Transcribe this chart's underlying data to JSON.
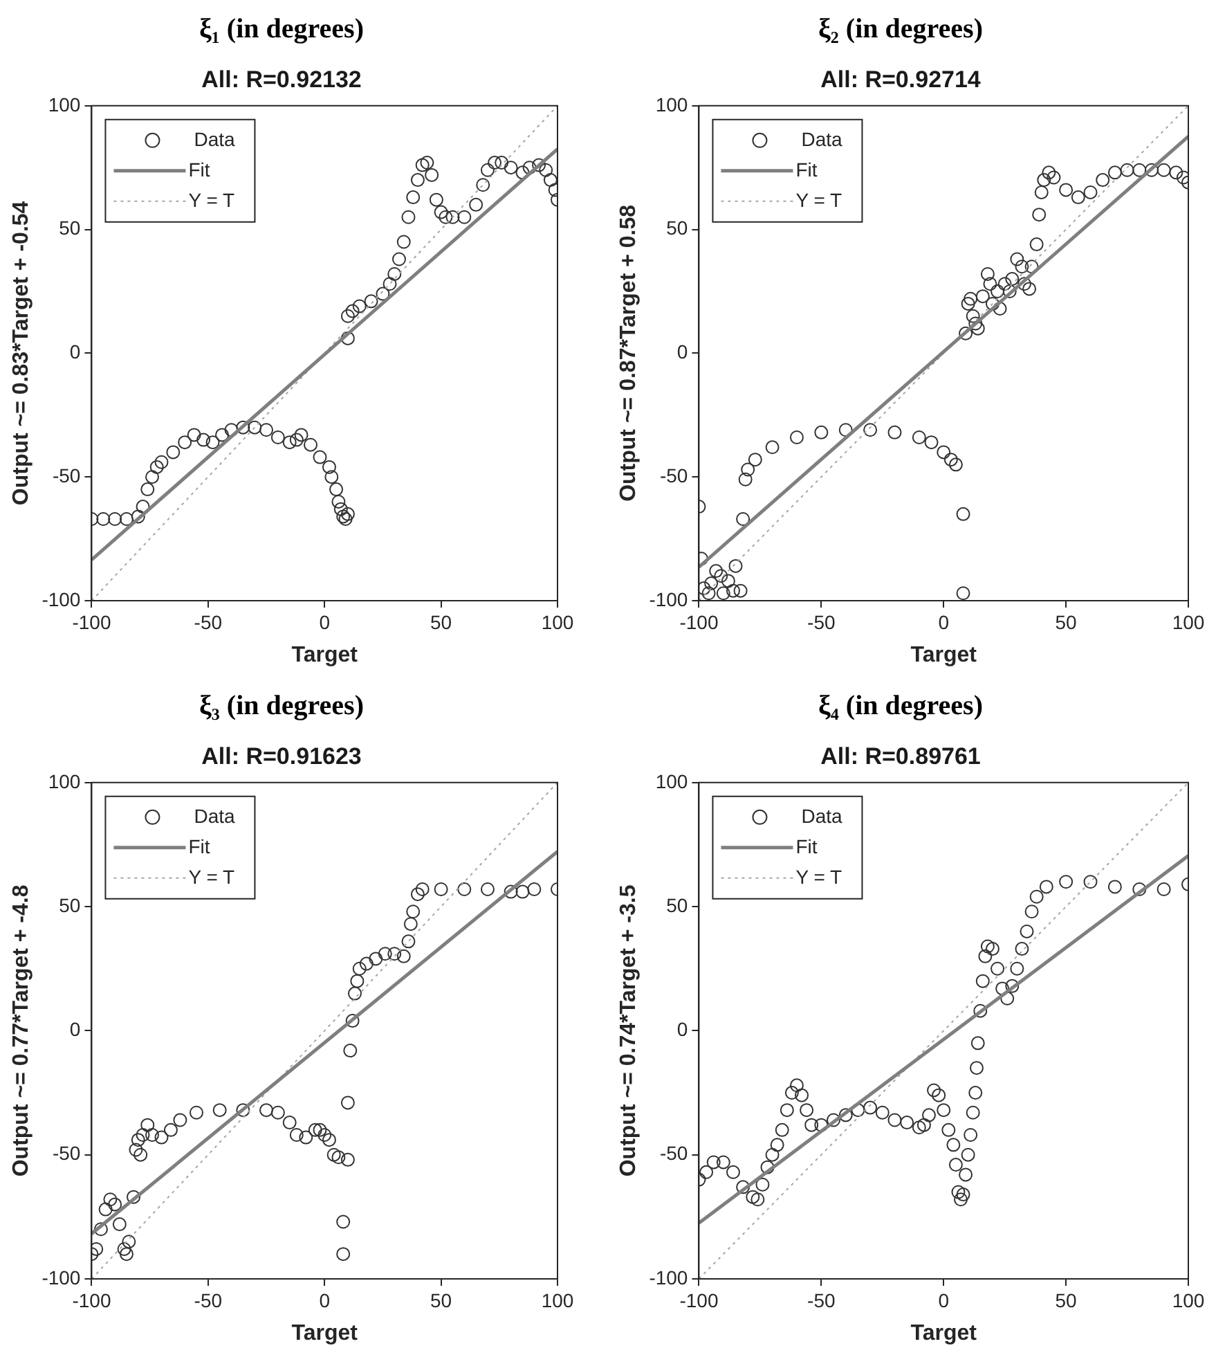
{
  "chart_data": [
    {
      "type": "scatter",
      "title": "ξ₁ (in degrees)",
      "subtitle": "All: R=0.92132",
      "xlabel": "Target",
      "ylabel": "Output ~= 0.83*Target + -0.54",
      "xlim": [
        -100,
        100
      ],
      "ylim": [
        -100,
        100
      ],
      "xticks": [
        -100,
        -50,
        0,
        50,
        100
      ],
      "yticks": [
        -100,
        -50,
        0,
        50,
        100
      ],
      "legend": "top left",
      "grid": false,
      "series": [
        {
          "name": "Data",
          "type": "scatter",
          "marker": "circle",
          "color": "#333333",
          "x": [
            -100,
            -95,
            -90,
            -85,
            -80,
            -78,
            -76,
            -74,
            -72,
            -70,
            -65,
            -60,
            -56,
            -52,
            -48,
            -44,
            -40,
            -35,
            -30,
            -25,
            -20,
            -15,
            -12,
            -10,
            -6,
            -2,
            2,
            3,
            5,
            6,
            7,
            8,
            9,
            10,
            10,
            10,
            12,
            15,
            20,
            25,
            28,
            30,
            32,
            34,
            36,
            38,
            40,
            42,
            44,
            46,
            48,
            50,
            52,
            55,
            60,
            65,
            68,
            70,
            73,
            76,
            80,
            85,
            88,
            92,
            95,
            97,
            99,
            100
          ],
          "values": [
            -67,
            -67,
            -67,
            -67,
            -66,
            -62,
            -55,
            -50,
            -46,
            -44,
            -40,
            -36,
            -33,
            -35,
            -36,
            -33,
            -31,
            -30,
            -30,
            -31,
            -34,
            -36,
            -35,
            -33,
            -37,
            -42,
            -46,
            -50,
            -55,
            -60,
            -63,
            -66,
            -67,
            -65,
            6,
            15,
            17,
            19,
            21,
            24,
            28,
            32,
            38,
            45,
            55,
            63,
            70,
            76,
            77,
            72,
            62,
            57,
            55,
            55,
            55,
            60,
            68,
            74,
            77,
            77,
            75,
            73,
            75,
            76,
            74,
            70,
            66,
            62
          ]
        },
        {
          "name": "Fit",
          "type": "line",
          "marker": "none",
          "line_style": "solid",
          "color": "#7f7f7f",
          "x": [
            -100,
            100
          ],
          "values": [
            -83.5,
            82.5
          ]
        },
        {
          "name": "Y = T",
          "type": "line",
          "marker": "none",
          "line_style": "dotted",
          "color": "#a6a6a6",
          "x": [
            -100,
            100
          ],
          "values": [
            -100,
            100
          ]
        }
      ]
    },
    {
      "type": "scatter",
      "title": "ξ₂ (in degrees)",
      "subtitle": "All: R=0.92714",
      "xlabel": "Target",
      "ylabel": "Output ~= 0.87*Target + 0.58",
      "xlim": [
        -100,
        100
      ],
      "ylim": [
        -100,
        100
      ],
      "xticks": [
        -100,
        -50,
        0,
        50,
        100
      ],
      "yticks": [
        -100,
        -50,
        0,
        50,
        100
      ],
      "legend": "top left",
      "grid": false,
      "series": [
        {
          "name": "Data",
          "type": "scatter",
          "marker": "circle",
          "color": "#333333",
          "x": [
            -100,
            -99,
            -98,
            -96,
            -95,
            -93,
            -91,
            -90,
            -88,
            -86,
            -85,
            -83,
            -82,
            -81,
            -80,
            -77,
            -70,
            -60,
            -50,
            -40,
            -30,
            -20,
            -10,
            -5,
            0,
            3,
            5,
            8,
            8,
            9,
            10,
            11,
            12,
            13,
            14,
            16,
            18,
            19,
            20,
            22,
            23,
            25,
            27,
            28,
            30,
            32,
            33,
            35,
            36,
            38,
            39,
            40,
            41,
            43,
            45,
            50,
            55,
            60,
            65,
            70,
            75,
            80,
            85,
            90,
            95,
            98,
            100
          ],
          "values": [
            -62,
            -83,
            -95,
            -97,
            -93,
            -88,
            -90,
            -97,
            -92,
            -96,
            -86,
            -96,
            -67,
            -51,
            -47,
            -43,
            -38,
            -34,
            -32,
            -31,
            -31,
            -32,
            -34,
            -36,
            -40,
            -43,
            -45,
            -65,
            -97,
            8,
            20,
            22,
            15,
            12,
            10,
            23,
            32,
            28,
            20,
            25,
            18,
            28,
            25,
            30,
            38,
            35,
            28,
            26,
            35,
            44,
            56,
            65,
            70,
            73,
            71,
            66,
            63,
            65,
            70,
            73,
            74,
            74,
            74,
            74,
            73,
            71,
            69
          ]
        },
        {
          "name": "Fit",
          "type": "line",
          "marker": "none",
          "line_style": "solid",
          "color": "#7f7f7f",
          "x": [
            -100,
            100
          ],
          "values": [
            -86.4,
            87.6
          ]
        },
        {
          "name": "Y = T",
          "type": "line",
          "marker": "none",
          "line_style": "dotted",
          "color": "#a6a6a6",
          "x": [
            -100,
            100
          ],
          "values": [
            -100,
            100
          ]
        }
      ]
    },
    {
      "type": "scatter",
      "title": "ξ₃ (in degrees)",
      "subtitle": "All: R=0.91623",
      "xlabel": "Target",
      "ylabel": "Output ~= 0.77*Target + -4.8",
      "xlim": [
        -100,
        100
      ],
      "ylim": [
        -100,
        100
      ],
      "xticks": [
        -100,
        -50,
        0,
        50,
        100
      ],
      "yticks": [
        -100,
        -50,
        0,
        50,
        100
      ],
      "legend": "top left",
      "grid": false,
      "series": [
        {
          "name": "Data",
          "type": "scatter",
          "marker": "circle",
          "color": "#333333",
          "x": [
            -100,
            -98,
            -96,
            -94,
            -92,
            -90,
            -88,
            -86,
            -85,
            -84,
            -82,
            -81,
            -80,
            -79,
            -78,
            -76,
            -74,
            -70,
            -66,
            -62,
            -55,
            -45,
            -35,
            -25,
            -20,
            -15,
            -12,
            -8,
            -4,
            -2,
            0,
            2,
            4,
            6,
            8,
            8,
            10,
            10,
            11,
            12,
            13,
            14,
            15,
            18,
            22,
            26,
            30,
            34,
            36,
            37,
            38,
            40,
            42,
            50,
            60,
            70,
            80,
            85,
            90,
            100
          ],
          "values": [
            -90,
            -88,
            -80,
            -72,
            -68,
            -70,
            -78,
            -88,
            -90,
            -85,
            -67,
            -48,
            -44,
            -50,
            -42,
            -38,
            -42,
            -43,
            -40,
            -36,
            -33,
            -32,
            -32,
            -32,
            -33,
            -37,
            -42,
            -43,
            -40,
            -40,
            -42,
            -44,
            -50,
            -51,
            -77,
            -90,
            -52,
            -29,
            -8,
            4,
            15,
            20,
            25,
            27,
            29,
            31,
            31,
            30,
            36,
            43,
            48,
            55,
            57,
            57,
            57,
            57,
            56,
            56,
            57,
            57
          ]
        },
        {
          "name": "Fit",
          "type": "line",
          "marker": "none",
          "line_style": "solid",
          "color": "#7f7f7f",
          "x": [
            -100,
            100
          ],
          "values": [
            -81.8,
            72.2
          ]
        },
        {
          "name": "Y = T",
          "type": "line",
          "marker": "none",
          "line_style": "dotted",
          "color": "#a6a6a6",
          "x": [
            -100,
            100
          ],
          "values": [
            -100,
            100
          ]
        }
      ]
    },
    {
      "type": "scatter",
      "title": "ξ₄ (in degrees)",
      "subtitle": "All: R=0.89761",
      "xlabel": "Target",
      "ylabel": "Output ~= 0.74*Target + -3.5",
      "xlim": [
        -100,
        100
      ],
      "ylim": [
        -100,
        100
      ],
      "xticks": [
        -100,
        -50,
        0,
        50,
        100
      ],
      "yticks": [
        -100,
        -50,
        0,
        50,
        100
      ],
      "legend": "top left",
      "grid": false,
      "series": [
        {
          "name": "Data",
          "type": "scatter",
          "marker": "circle",
          "color": "#333333",
          "x": [
            -100,
            -97,
            -94,
            -90,
            -86,
            -82,
            -78,
            -76,
            -74,
            -72,
            -70,
            -68,
            -66,
            -64,
            -62,
            -60,
            -58,
            -56,
            -54,
            -50,
            -45,
            -40,
            -35,
            -30,
            -25,
            -20,
            -15,
            -10,
            -8,
            -6,
            -4,
            -2,
            0,
            2,
            4,
            5,
            6,
            7,
            8,
            9,
            10,
            11,
            12,
            13,
            13.5,
            14,
            15,
            16,
            17,
            18,
            20,
            22,
            24,
            26,
            28,
            30,
            32,
            34,
            36,
            38,
            42,
            50,
            60,
            70,
            80,
            90,
            100
          ],
          "values": [
            -60,
            -57,
            -53,
            -53,
            -57,
            -63,
            -67,
            -68,
            -62,
            -55,
            -50,
            -46,
            -40,
            -32,
            -25,
            -22,
            -26,
            -32,
            -38,
            -38,
            -36,
            -34,
            -32,
            -31,
            -33,
            -36,
            -37,
            -39,
            -38,
            -34,
            -24,
            -26,
            -32,
            -40,
            -46,
            -54,
            -65,
            -68,
            -66,
            -58,
            -50,
            -42,
            -33,
            -25,
            -15,
            -5,
            8,
            20,
            30,
            34,
            33,
            25,
            17,
            13,
            18,
            25,
            33,
            40,
            48,
            54,
            58,
            60,
            60,
            58,
            57,
            57,
            59
          ]
        },
        {
          "name": "Fit",
          "type": "line",
          "marker": "none",
          "line_style": "solid",
          "color": "#7f7f7f",
          "x": [
            -100,
            100
          ],
          "values": [
            -77.5,
            70.5
          ]
        },
        {
          "name": "Y = T",
          "type": "line",
          "marker": "none",
          "line_style": "dotted",
          "color": "#a6a6a6",
          "x": [
            -100,
            100
          ],
          "values": [
            -100,
            100
          ]
        }
      ]
    }
  ]
}
